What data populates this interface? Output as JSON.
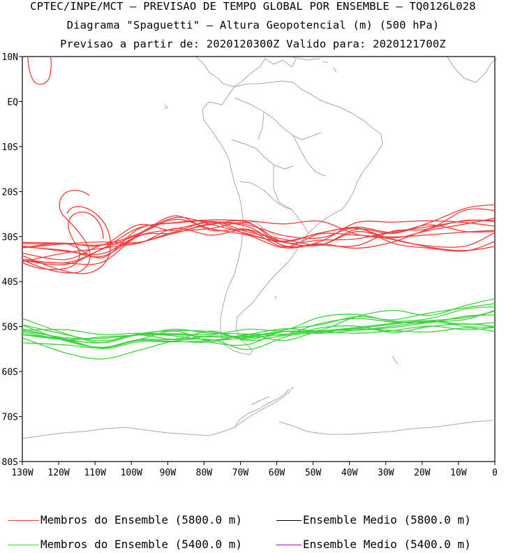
{
  "titles": {
    "line1": "CPTEC/INPE/MCT – PREVISAO DE TEMPO GLOBAL POR ENSEMBLE – TQ0126L028",
    "line2": "Diagrama \"Spaguetti\" – Altura Geopotencial (m) (500 hPa)",
    "line3": "Previsao a partir de: 2020120300Z  Valido para: 2020121700Z"
  },
  "legend": [
    {
      "label": "Membros do Ensemble (5800.0 m)",
      "color": "#f03c3c"
    },
    {
      "label": "Ensemble Medio (5800.0 m)",
      "color": "#000000"
    },
    {
      "label": "Membros do Ensemble (5400.0 m)",
      "color": "#3cd23c"
    },
    {
      "label": "Ensemble Medio (5400.0 m)",
      "color": "#a000c8"
    }
  ],
  "chart_data": {
    "type": "line",
    "x_ticks": [
      "130W",
      "120W",
      "110W",
      "100W",
      "90W",
      "80W",
      "70W",
      "60W",
      "50W",
      "40W",
      "30W",
      "20W",
      "10W",
      "0"
    ],
    "y_ticks": [
      "10N",
      "EQ",
      "10S",
      "20S",
      "30S",
      "40S",
      "50S",
      "60S",
      "70S",
      "80S"
    ],
    "xlim": [
      -130,
      0
    ],
    "ylim": [
      -80,
      10
    ],
    "x_unit": "longitude (degrees east)",
    "y_unit": "latitude (degrees north)",
    "contour_colors": {
      "5800": "#f03c3c",
      "5400": "#3cd23c",
      "coast": "#a8a8a8"
    },
    "series": [
      {
        "name": "Membros do Ensemble (5800.0 m)",
        "level": 5800,
        "members": [
          {
            "x": [
              -130,
              -118,
              -108,
              -98,
              -88,
              -78,
              -68,
              -58,
              -48,
              -38,
              -28,
              -18,
              -8,
              0
            ],
            "y": [
              -32.5,
              -31.6,
              -31.2,
              -31.3,
              -29.0,
              -28.2,
              -27.0,
              -31.3,
              -30.8,
              -30.5,
              -28.9,
              -27.8,
              -26.5,
              -26.4
            ]
          },
          {
            "x": [
              -130,
              -118,
              -108,
              -98,
              -88,
              -78,
              -68,
              -58,
              -48,
              -38,
              -28,
              -18,
              -8,
              0
            ],
            "y": [
              -31.3,
              -31.5,
              -31.9,
              -27.4,
              -28.7,
              -26.6,
              -29.0,
              -30.6,
              -31.8,
              -28.9,
              -30.3,
              -28.6,
              -27.2,
              -25.9
            ]
          },
          {
            "x": [
              -130,
              -118,
              -108,
              -98,
              -88,
              -78,
              -68,
              -58,
              -48,
              -38,
              -28,
              -18,
              -8,
              0
            ],
            "y": [
              -35.3,
              -36.2,
              -32.8,
              -29.5,
              -26.2,
              -28.3,
              -29.7,
              -32.5,
              -31.1,
              -26.9,
              -26.8,
              -26.5,
              -26.9,
              -27.7
            ]
          },
          {
            "x": [
              -130,
              -118,
              -108,
              -98,
              -88,
              -78,
              -68,
              -58,
              -48,
              -38,
              -28,
              -18,
              -8,
              0
            ],
            "y": [
              -35.4,
              -35.9,
              -35.7,
              -29.9,
              -29.2,
              -27.1,
              -27.8,
              -32.0,
              -31.9,
              -32.0,
              -28.8,
              -28.2,
              -24.1,
              -24.2
            ]
          },
          {
            "x": [
              -130,
              -118,
              -108,
              -98,
              -88,
              -78,
              -68,
              -58,
              -48,
              -38,
              -28,
              -18,
              -8,
              0
            ],
            "y": [
              -35.6,
              -33.6,
              -32.6,
              -31.4,
              -29.2,
              -27.3,
              -26.8,
              -32.1,
              -31.6,
              -32.6,
              -31.2,
              -28.3,
              -26.4,
              -26.7
            ]
          },
          {
            "x": [
              -130,
              -118,
              -108,
              -98,
              -88,
              -78,
              -68,
              -58,
              -48,
              -38,
              -28,
              -18,
              -8,
              0
            ],
            "y": [
              -31.6,
              -31.6,
              -31.8,
              -29.3,
              -25.4,
              -28.6,
              -28.4,
              -31.3,
              -31.9,
              -28.4,
              -29.3,
              -26.9,
              -23.7,
              -22.9
            ]
          },
          {
            "x": [
              -130,
              -118,
              -108,
              -98,
              -88,
              -78,
              -68,
              -58,
              -48,
              -38,
              -28,
              -18,
              -8,
              0
            ],
            "y": [
              -32.3,
              -33.1,
              -34.4,
              -29.6,
              -25.8,
              -27.3,
              -29.4,
              -31.2,
              -29.2,
              -28.2,
              -30.7,
              -32.1,
              -32.1,
              -29.1
            ]
          },
          {
            "x": [
              -130,
              -118,
              -108,
              -98,
              -88,
              -78,
              -68,
              -58,
              -48,
              -38,
              -28,
              -18,
              -8,
              0
            ],
            "y": [
              -35.0,
              -35.8,
              -32.7,
              -28.1,
              -27.0,
              -26.7,
              -29.5,
              -31.0,
              -29.2,
              -27.9,
              -29.1,
              -27.4,
              -28.9,
              -28.9
            ]
          },
          {
            "x": [
              -130,
              -118,
              -108,
              -98,
              -88,
              -78,
              -68,
              -58,
              -48,
              -38,
              -28,
              -18,
              -8,
              0
            ],
            "y": [
              -32.1,
              -33.3,
              -33.8,
              -29.8,
              -28.3,
              -26.8,
              -27.4,
              -29.8,
              -30.3,
              -28.1,
              -31.5,
              -32.6,
              -33.2,
              -31.1
            ]
          },
          {
            "x": [
              -130,
              -118,
              -108,
              -98,
              -88,
              -78,
              -68,
              -58,
              -48,
              -38,
              -28,
              -18,
              -8,
              0
            ],
            "y": [
              -33.7,
              -35.1,
              -31.9,
              -31.5,
              -28.2,
              -29.7,
              -28.6,
              -32.3,
              -29.4,
              -29.7,
              -30.1,
              -29.6,
              -29.0,
              -28.6
            ]
          },
          {
            "x": [
              -130,
              -118,
              -108,
              -98,
              -88,
              -78,
              -68,
              -58,
              -48,
              -38,
              -28,
              -18,
              -8,
              0
            ],
            "y": [
              -32.5,
              -31.6,
              -34.7,
              -28.3,
              -26.9,
              -26.3,
              -26.5,
              -27.2,
              -26.6,
              -29.5,
              -30.6,
              -32.4,
              -33.1,
              -32.2
            ]
          }
        ]
      },
      {
        "name": "Membros do Ensemble (5400.0 m)",
        "level": 5400,
        "members": [
          {
            "x": [
              -130,
              -118,
              -108,
              -98,
              -88,
              -78,
              -68,
              -58,
              -48,
              -38,
              -28,
              -18,
              -8,
              0
            ],
            "y": [
              -51.7,
              -52.9,
              -54.9,
              -53.4,
              -53.4,
              -53.1,
              -51.8,
              -50.5,
              -51.0,
              -50.4,
              -49.5,
              -48.7,
              -50.0,
              -50.1
            ]
          },
          {
            "x": [
              -130,
              -118,
              -108,
              -98,
              -88,
              -78,
              -68,
              -58,
              -48,
              -38,
              -28,
              -18,
              -8,
              0
            ],
            "y": [
              -51.2,
              -53.1,
              -54.7,
              -53.1,
              -53.3,
              -53.4,
              -51.7,
              -51.8,
              -49.3,
              -48.2,
              -49.0,
              -49.1,
              -47.7,
              -47.4
            ]
          },
          {
            "x": [
              -130,
              -118,
              -108,
              -98,
              -88,
              -78,
              -68,
              -58,
              -48,
              -38,
              -28,
              -18,
              -8,
              0
            ],
            "y": [
              -53.6,
              -54.1,
              -54.7,
              -52.9,
              -52.9,
              -52.1,
              -52.1,
              -51.1,
              -51.5,
              -50.8,
              -49.9,
              -48.9,
              -49.5,
              -49.1
            ]
          },
          {
            "x": [
              -130,
              -118,
              -108,
              -98,
              -88,
              -78,
              -68,
              -58,
              -48,
              -38,
              -28,
              -18,
              -8,
              0
            ],
            "y": [
              -49.7,
              -53.2,
              -54.6,
              -52.9,
              -51.0,
              -53.5,
              -54.0,
              -50.8,
              -49.6,
              -47.8,
              -48.5,
              -47.0,
              -45.8,
              -44.9
            ]
          },
          {
            "x": [
              -130,
              -118,
              -108,
              -98,
              -88,
              -78,
              -68,
              -58,
              -48,
              -38,
              -28,
              -18,
              -8,
              0
            ],
            "y": [
              -49.6,
              -51.8,
              -53.2,
              -51.7,
              -51.6,
              -51.8,
              -50.6,
              -50.8,
              -47.9,
              -47.3,
              -48.8,
              -48.2,
              -46.1,
              -45.6
            ]
          },
          {
            "x": [
              -130,
              -118,
              -108,
              -98,
              -88,
              -78,
              -68,
              -58,
              -48,
              -38,
              -28,
              -18,
              -8,
              0
            ],
            "y": [
              -50.8,
              -50.7,
              -51.8,
              -51.5,
              -52.1,
              -53.0,
              -52.5,
              -51.7,
              -51.0,
              -50.2,
              -49.3,
              -48.7,
              -48.0,
              -46.6
            ]
          },
          {
            "x": [
              -130,
              -118,
              -108,
              -98,
              -88,
              -78,
              -68,
              -58,
              -48,
              -38,
              -28,
              -18,
              -8,
              0
            ],
            "y": [
              -51.8,
              -52.9,
              -52.3,
              -51.8,
              -50.6,
              -51.5,
              -51.7,
              -53.1,
              -51.0,
              -50.8,
              -50.2,
              -49.1,
              -48.4,
              -46.4
            ]
          },
          {
            "x": [
              -130,
              -118,
              -108,
              -98,
              -88,
              -78,
              -68,
              -58,
              -48,
              -38,
              -28,
              -18,
              -8,
              0
            ],
            "y": [
              -52.5,
              -55.9,
              -57.2,
              -55.3,
              -53.2,
              -52.9,
              -55.1,
              -52.4,
              -50.3,
              -49.9,
              -51.3,
              -50.0,
              -49.4,
              -50.0
            ]
          },
          {
            "x": [
              -130,
              -118,
              -108,
              -98,
              -88,
              -78,
              -68,
              -58,
              -48,
              -38,
              -28,
              -18,
              -8,
              0
            ],
            "y": [
              -48.2,
              -51.6,
              -53.6,
              -51.6,
              -50.9,
              -51.2,
              -52.8,
              -51.1,
              -50.8,
              -47.8,
              -46.4,
              -47.5,
              -45.3,
              -43.8
            ]
          },
          {
            "x": [
              -130,
              -118,
              -108,
              -98,
              -88,
              -78,
              -68,
              -58,
              -48,
              -38,
              -28,
              -18,
              -8,
              0
            ],
            "y": [
              -50.9,
              -52.5,
              -52.6,
              -51.9,
              -51.8,
              -52.3,
              -52.3,
              -51.1,
              -51.1,
              -51.5,
              -50.9,
              -49.9,
              -50.7,
              -50.2
            ]
          },
          {
            "x": [
              -130,
              -118,
              -108,
              -98,
              -88,
              -78,
              -68,
              -58,
              -48,
              -38,
              -28,
              -18,
              -8,
              0
            ],
            "y": [
              -50.5,
              -52.8,
              -53.6,
              -51.9,
              -52.8,
              -51.0,
              -53.1,
              -52.0,
              -51.3,
              -50.5,
              -50.9,
              -51.2,
              -50.3,
              -51.1
            ]
          }
        ]
      }
    ]
  }
}
